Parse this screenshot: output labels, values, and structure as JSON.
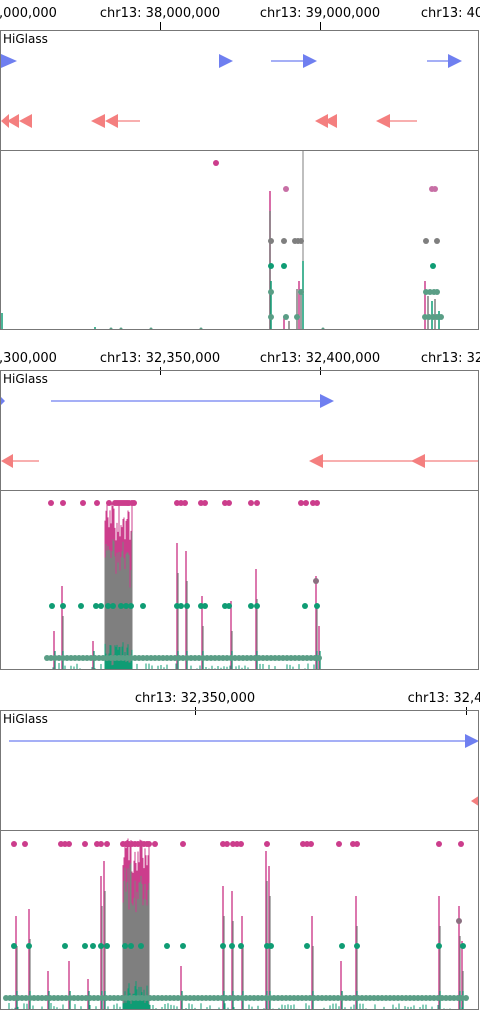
{
  "colors": {
    "forward_gene": "#6f7ff0",
    "reverse_gene": "#f47f7f",
    "pink": "#cc3d8c",
    "gray": "#7f7f7f",
    "green": "#0f9c74",
    "teal": "#5a9e86"
  },
  "views": [
    {
      "ticks": [
        {
          "label": ",000,000"
        },
        {
          "label": "chr13: 38,000,000"
        },
        {
          "label": "chr13: 39,000,000"
        },
        {
          "label": "chr13: 40"
        }
      ],
      "brand": "HiGlass",
      "gene_icons": [
        "forward-gene-arrow",
        "reverse-gene-arrow"
      ]
    },
    {
      "ticks": [
        {
          "label": ",300,000"
        },
        {
          "label": "chr13: 32,350,000"
        },
        {
          "label": "chr13: 32,400,000"
        },
        {
          "label": "chr13: 32"
        }
      ],
      "brand": "HiGlass",
      "gene_icons": [
        "forward-gene-arrow",
        "reverse-gene-arrow"
      ]
    },
    {
      "ticks": [
        {
          "label": "chr13: 32,350,000"
        },
        {
          "label": "chr13: 32,4"
        }
      ],
      "brand": "HiGlass",
      "gene_icons": [
        "forward-gene-arrow",
        "reverse-gene-arrow"
      ]
    }
  ]
}
